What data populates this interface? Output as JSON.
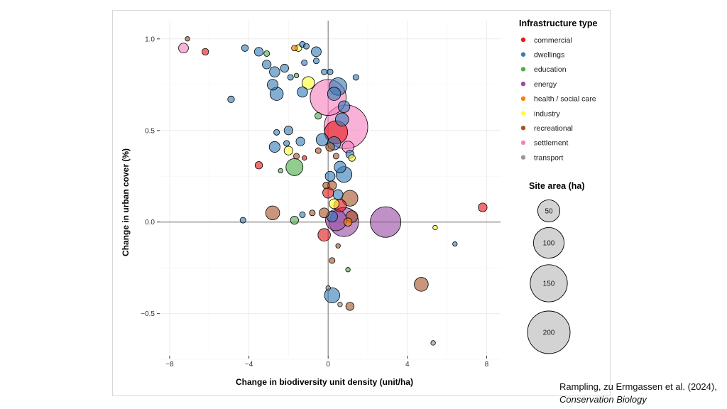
{
  "chart_data": {
    "type": "scatter",
    "xlabel": "Change in biodiversity unit density (unit/ha)",
    "ylabel": "Change in urban cover (%)",
    "xlim": [
      -8.5,
      8.7
    ],
    "ylim": [
      -0.73,
      1.1
    ],
    "xticks": [
      -8,
      -4,
      0,
      4,
      8
    ],
    "yticks": [
      -0.5,
      0.0,
      0.5,
      1.0
    ],
    "xtick_labels": [
      "−8",
      "−4",
      "0",
      "4",
      "8"
    ],
    "ytick_labels": [
      "−0.5",
      "0.0",
      "0.5",
      "1.0"
    ],
    "grid": true,
    "reference_lines": {
      "x": 0,
      "y": 0
    },
    "color_legend": {
      "title": "Infrastructure type",
      "placement": "right",
      "entries": [
        {
          "key": "commercial",
          "label": "commercial",
          "color": "#e41a1c"
        },
        {
          "key": "dwellings",
          "label": "dwellings",
          "color": "#377eb8"
        },
        {
          "key": "education",
          "label": "education",
          "color": "#4daf4a"
        },
        {
          "key": "energy",
          "label": "energy",
          "color": "#984ea3"
        },
        {
          "key": "health",
          "label": "health / social care",
          "color": "#ff7f00"
        },
        {
          "key": "industry",
          "label": "industry",
          "color": "#ffff33"
        },
        {
          "key": "recreational",
          "label": "recreational",
          "color": "#a65628"
        },
        {
          "key": "settlement",
          "label": "settlement",
          "color": "#f781bf"
        },
        {
          "key": "transport",
          "label": "transport",
          "color": "#999999"
        }
      ]
    },
    "size_legend": {
      "title": "Site area (ha)",
      "placement": "right",
      "sizes": [
        50,
        100,
        150,
        200
      ],
      "labels": [
        "50",
        "100",
        "150",
        "200"
      ],
      "max_area": 200
    },
    "points": [
      {
        "x": -7.3,
        "y": 0.95,
        "area": 8,
        "type": "settlement"
      },
      {
        "x": -7.1,
        "y": 1.0,
        "area": 1,
        "type": "recreational"
      },
      {
        "x": -6.2,
        "y": 0.93,
        "area": 3,
        "type": "commercial"
      },
      {
        "x": -4.2,
        "y": 0.95,
        "area": 3,
        "type": "dwellings"
      },
      {
        "x": -3.5,
        "y": 0.93,
        "area": 6,
        "type": "dwellings"
      },
      {
        "x": -3.1,
        "y": 0.92,
        "area": 2,
        "type": "education"
      },
      {
        "x": -3.1,
        "y": 0.86,
        "area": 6,
        "type": "dwellings"
      },
      {
        "x": -2.7,
        "y": 0.82,
        "area": 9,
        "type": "dwellings"
      },
      {
        "x": -2.2,
        "y": 0.84,
        "area": 5,
        "type": "dwellings"
      },
      {
        "x": -2.8,
        "y": 0.75,
        "area": 10,
        "type": "dwellings"
      },
      {
        "x": -2.6,
        "y": 0.7,
        "area": 16,
        "type": "dwellings"
      },
      {
        "x": -4.9,
        "y": 0.67,
        "area": 3,
        "type": "dwellings"
      },
      {
        "x": -1.9,
        "y": 0.79,
        "area": 2,
        "type": "dwellings"
      },
      {
        "x": -1.6,
        "y": 0.8,
        "area": 1,
        "type": "education"
      },
      {
        "x": -1.7,
        "y": 0.95,
        "area": 2,
        "type": "health"
      },
      {
        "x": -1.5,
        "y": 0.95,
        "area": 3,
        "type": "industry"
      },
      {
        "x": -1.3,
        "y": 0.97,
        "area": 2,
        "type": "dwellings"
      },
      {
        "x": -1.1,
        "y": 0.96,
        "area": 2,
        "type": "dwellings"
      },
      {
        "x": -0.6,
        "y": 0.93,
        "area": 8,
        "type": "dwellings"
      },
      {
        "x": -1.2,
        "y": 0.87,
        "area": 2,
        "type": "dwellings"
      },
      {
        "x": -0.6,
        "y": 0.88,
        "area": 2,
        "type": "dwellings"
      },
      {
        "x": -1.0,
        "y": 0.76,
        "area": 14,
        "type": "industry"
      },
      {
        "x": -1.3,
        "y": 0.71,
        "area": 9,
        "type": "dwellings"
      },
      {
        "x": -0.2,
        "y": 0.82,
        "area": 2,
        "type": "dwellings"
      },
      {
        "x": 0.1,
        "y": 0.82,
        "area": 2,
        "type": "dwellings"
      },
      {
        "x": -2.0,
        "y": 0.5,
        "area": 6,
        "type": "dwellings"
      },
      {
        "x": -2.6,
        "y": 0.49,
        "area": 2,
        "type": "dwellings"
      },
      {
        "x": -2.1,
        "y": 0.43,
        "area": 2,
        "type": "dwellings"
      },
      {
        "x": -2.7,
        "y": 0.41,
        "area": 10,
        "type": "dwellings"
      },
      {
        "x": -1.4,
        "y": 0.44,
        "area": 6,
        "type": "dwellings"
      },
      {
        "x": -2.0,
        "y": 0.39,
        "area": 6,
        "type": "industry"
      },
      {
        "x": -1.6,
        "y": 0.36,
        "area": 2,
        "type": "recreational"
      },
      {
        "x": -3.5,
        "y": 0.31,
        "area": 4,
        "type": "commercial"
      },
      {
        "x": -2.4,
        "y": 0.28,
        "area": 1,
        "type": "education"
      },
      {
        "x": -1.7,
        "y": 0.3,
        "area": 28,
        "type": "education"
      },
      {
        "x": -1.2,
        "y": 0.35,
        "area": 1,
        "type": "commercial"
      },
      {
        "x": -0.5,
        "y": 0.39,
        "area": 2,
        "type": "recreational"
      },
      {
        "x": -0.3,
        "y": 0.45,
        "area": 13,
        "type": "dwellings"
      },
      {
        "x": -0.5,
        "y": 0.58,
        "area": 3,
        "type": "education"
      },
      {
        "x": 0.0,
        "y": 0.68,
        "area": 140,
        "type": "settlement"
      },
      {
        "x": 0.5,
        "y": 0.74,
        "area": 30,
        "type": "dwellings"
      },
      {
        "x": 0.8,
        "y": 0.63,
        "area": 12,
        "type": "dwellings"
      },
      {
        "x": 1.4,
        "y": 0.79,
        "area": 2,
        "type": "dwellings"
      },
      {
        "x": 0.3,
        "y": 0.7,
        "area": 16,
        "type": "dwellings"
      },
      {
        "x": 0.9,
        "y": 0.52,
        "area": 210,
        "type": "settlement"
      },
      {
        "x": 0.4,
        "y": 0.49,
        "area": 55,
        "type": "commercial"
      },
      {
        "x": 0.7,
        "y": 0.56,
        "area": 16,
        "type": "dwellings"
      },
      {
        "x": 0.3,
        "y": 0.43,
        "area": 16,
        "type": "dwellings"
      },
      {
        "x": 0.1,
        "y": 0.41,
        "area": 6,
        "type": "recreational"
      },
      {
        "x": 0.4,
        "y": 0.36,
        "area": 2,
        "type": "recreational"
      },
      {
        "x": 1.0,
        "y": 0.41,
        "area": 12,
        "type": "settlement"
      },
      {
        "x": 1.1,
        "y": 0.37,
        "area": 5,
        "type": "dwellings"
      },
      {
        "x": 1.2,
        "y": 0.35,
        "area": 3,
        "type": "industry"
      },
      {
        "x": 0.6,
        "y": 0.3,
        "area": 12,
        "type": "dwellings"
      },
      {
        "x": 0.8,
        "y": 0.26,
        "area": 24,
        "type": "dwellings"
      },
      {
        "x": 0.1,
        "y": 0.25,
        "area": 8,
        "type": "dwellings"
      },
      {
        "x": 0.2,
        "y": 0.2,
        "area": 6,
        "type": "recreational"
      },
      {
        "x": -0.1,
        "y": 0.2,
        "area": 3,
        "type": "recreational"
      },
      {
        "x": 0.0,
        "y": 0.16,
        "area": 10,
        "type": "commercial"
      },
      {
        "x": 0.5,
        "y": 0.15,
        "area": 8,
        "type": "dwellings"
      },
      {
        "x": 1.1,
        "y": 0.13,
        "area": 24,
        "type": "recreational"
      },
      {
        "x": 0.6,
        "y": 0.09,
        "area": 14,
        "type": "commercial"
      },
      {
        "x": 0.3,
        "y": 0.1,
        "area": 8,
        "type": "industry"
      },
      {
        "x": -0.2,
        "y": 0.05,
        "area": 8,
        "type": "recreational"
      },
      {
        "x": 0.2,
        "y": 0.03,
        "area": 10,
        "type": "dwellings"
      },
      {
        "x": 0.8,
        "y": 0.0,
        "area": 90,
        "type": "energy"
      },
      {
        "x": 0.4,
        "y": 0.01,
        "area": 45,
        "type": "energy"
      },
      {
        "x": 1.2,
        "y": 0.03,
        "area": 12,
        "type": "recreational"
      },
      {
        "x": 1.0,
        "y": 0.0,
        "area": 5,
        "type": "health"
      },
      {
        "x": -0.2,
        "y": -0.07,
        "area": 14,
        "type": "commercial"
      },
      {
        "x": -2.8,
        "y": 0.05,
        "area": 18,
        "type": "recreational"
      },
      {
        "x": -4.3,
        "y": 0.01,
        "area": 2,
        "type": "dwellings"
      },
      {
        "x": -1.7,
        "y": 0.01,
        "area": 5,
        "type": "education"
      },
      {
        "x": -1.3,
        "y": 0.04,
        "area": 2,
        "type": "dwellings"
      },
      {
        "x": -0.8,
        "y": 0.05,
        "area": 2,
        "type": "recreational"
      },
      {
        "x": 0.5,
        "y": -0.13,
        "area": 1,
        "type": "recreational"
      },
      {
        "x": 0.2,
        "y": -0.21,
        "area": 2,
        "type": "recreational"
      },
      {
        "x": 1.0,
        "y": -0.26,
        "area": 1,
        "type": "education"
      },
      {
        "x": 2.9,
        "y": 0.0,
        "area": 100,
        "type": "energy"
      },
      {
        "x": 5.4,
        "y": -0.03,
        "area": 1,
        "type": "industry"
      },
      {
        "x": 6.4,
        "y": -0.12,
        "area": 1,
        "type": "dwellings"
      },
      {
        "x": 7.8,
        "y": 0.08,
        "area": 6,
        "type": "commercial"
      },
      {
        "x": 4.7,
        "y": -0.34,
        "area": 18,
        "type": "recreational"
      },
      {
        "x": 0.2,
        "y": -0.4,
        "area": 22,
        "type": "dwellings"
      },
      {
        "x": 0.0,
        "y": -0.36,
        "area": 1,
        "type": "transport"
      },
      {
        "x": 1.1,
        "y": -0.46,
        "area": 5,
        "type": "recreational"
      },
      {
        "x": 0.6,
        "y": -0.45,
        "area": 1,
        "type": "transport"
      },
      {
        "x": 5.3,
        "y": -0.66,
        "area": 1,
        "type": "transport"
      }
    ]
  },
  "citation": {
    "authors": "Rampling, zu Ermgassen et al. (2024),",
    "journal": "Conservation Biology"
  }
}
